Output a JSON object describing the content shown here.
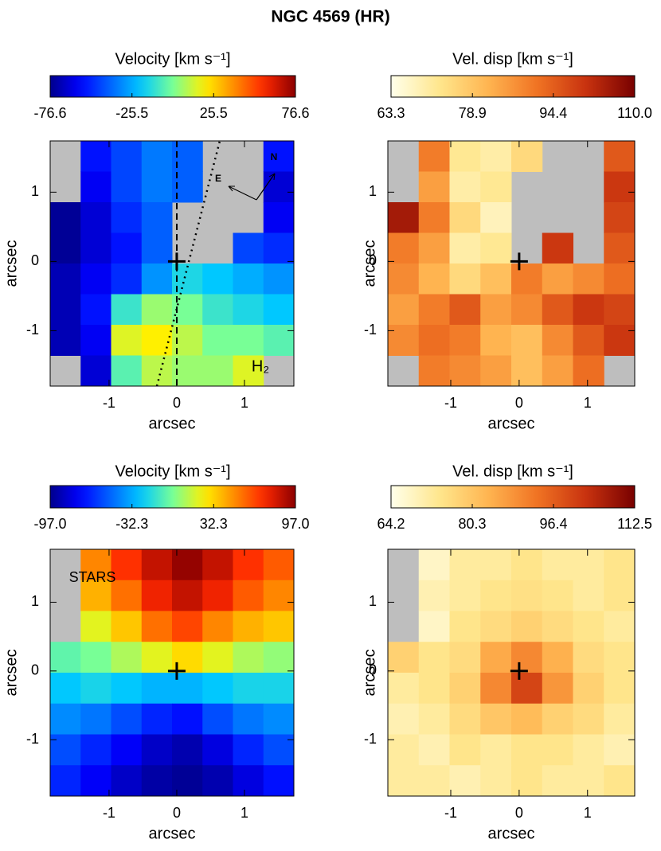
{
  "title": "NGC 4569 (HR)",
  "chart_data": [
    {
      "type": "heatmap",
      "colorbar_label": "Velocity [km s⁻¹]",
      "colormap": "jet",
      "missing_color": "#bebebe",
      "clim": [
        -76.6,
        76.6
      ],
      "cticks": [
        -76.6,
        -25.5,
        25.5,
        76.6
      ],
      "xlabel": "arcsec",
      "ylabel": "arcsec",
      "xlim": [
        -1.87,
        1.73
      ],
      "ylim": [
        -1.8,
        1.74
      ],
      "xticks": [
        -1,
        0,
        1
      ],
      "yticks": [
        -1,
        0,
        1
      ],
      "annotations": [
        "H₂",
        "N",
        "E"
      ],
      "values": [
        [
          null,
          -55,
          -45,
          -35,
          -40,
          null,
          null,
          -55
        ],
        [
          null,
          -60,
          -45,
          -35,
          -40,
          null,
          null,
          -65
        ],
        [
          -75,
          -65,
          -50,
          -40,
          null,
          null,
          null,
          -60
        ],
        [
          -75,
          -65,
          -55,
          -40,
          null,
          null,
          -45,
          -50
        ],
        [
          -70,
          -60,
          -50,
          -30,
          -15,
          -20,
          -25,
          -30
        ],
        [
          -70,
          -55,
          -10,
          5,
          0,
          -10,
          -15,
          -20
        ],
        [
          -70,
          -60,
          15,
          20,
          10,
          0,
          0,
          -5
        ],
        [
          null,
          -65,
          -5,
          10,
          5,
          5,
          15,
          null
        ]
      ]
    },
    {
      "type": "heatmap",
      "colorbar_label": "Vel. disp [km s⁻¹]",
      "colormap": "heat",
      "missing_color": "#bebebe",
      "clim": [
        63.3,
        110.0
      ],
      "cticks": [
        63.3,
        78.9,
        94.4,
        {
          "value": 110,
          "label": "110.0"
        }
      ],
      "xlabel": "arcsec",
      "ylabel": "arcsec",
      "xlim": [
        -1.92,
        1.69
      ],
      "ylim": [
        -1.8,
        1.74
      ],
      "xticks": [
        -1,
        0,
        1
      ],
      "yticks": [
        -1,
        0,
        1
      ],
      "annotations": [],
      "values": [
        [
          null,
          90,
          72,
          70,
          75,
          null,
          null,
          95
        ],
        [
          null,
          85,
          70,
          72,
          null,
          null,
          null,
          100
        ],
        [
          105,
          90,
          75,
          68,
          null,
          null,
          null,
          98
        ],
        [
          90,
          85,
          70,
          72,
          null,
          100,
          null,
          95
        ],
        [
          88,
          82,
          75,
          80,
          90,
          85,
          88,
          92
        ],
        [
          85,
          90,
          95,
          85,
          88,
          95,
          100,
          98
        ],
        [
          88,
          92,
          90,
          82,
          80,
          88,
          95,
          100
        ],
        [
          null,
          90,
          88,
          85,
          80,
          85,
          92,
          null
        ]
      ]
    },
    {
      "type": "heatmap",
      "colorbar_label": "Velocity [km s⁻¹]",
      "colormap": "jet",
      "missing_color": "#bebebe",
      "clim": [
        -97,
        97
      ],
      "cticks": [
        {
          "value": -97,
          "label": "-97.0"
        },
        -32.3,
        32.3,
        {
          "value": 97,
          "label": "97.0"
        }
      ],
      "xlabel": "arcsec",
      "ylabel": "arcsec",
      "xlim": [
        -1.87,
        1.73
      ],
      "ylim": [
        -1.82,
        1.77
      ],
      "xticks": [
        -1,
        0,
        1
      ],
      "yticks": [
        -1,
        0,
        1
      ],
      "annotations": [
        "STARS"
      ],
      "values": [
        [
          null,
          50,
          70,
          85,
          95,
          85,
          70,
          60
        ],
        [
          null,
          40,
          55,
          75,
          85,
          75,
          60,
          50
        ],
        [
          null,
          20,
          35,
          55,
          65,
          50,
          40,
          35
        ],
        [
          -5,
          0,
          10,
          20,
          30,
          20,
          10,
          5
        ],
        [
          -25,
          -20,
          -25,
          -30,
          -30,
          -25,
          -20,
          -20
        ],
        [
          -40,
          -45,
          -55,
          -65,
          -70,
          -55,
          -45,
          -40
        ],
        [
          -55,
          -65,
          -75,
          -85,
          -90,
          -80,
          -65,
          -55
        ],
        [
          -65,
          -75,
          -85,
          -92,
          -95,
          -90,
          -80,
          -70
        ]
      ]
    },
    {
      "type": "heatmap",
      "colorbar_label": "Vel. disp [km s⁻¹]",
      "colormap": "heat",
      "missing_color": "#bebebe",
      "clim": [
        64.2,
        112.5
      ],
      "cticks": [
        64.2,
        80.3,
        96.4,
        112.5
      ],
      "xlabel": "arcsec",
      "ylabel": "arcsec",
      "xlim": [
        -1.92,
        1.69
      ],
      "ylim": [
        -1.82,
        1.77
      ],
      "xticks": [
        -1,
        0,
        1
      ],
      "yticks": [
        -1,
        0,
        1
      ],
      "annotations": [],
      "values": [
        [
          null,
          68,
          72,
          72,
          74,
          72,
          72,
          74
        ],
        [
          null,
          70,
          72,
          74,
          75,
          74,
          72,
          74
        ],
        [
          null,
          68,
          74,
          76,
          78,
          76,
          74,
          72
        ],
        [
          78,
          74,
          76,
          85,
          90,
          84,
          76,
          74
        ],
        [
          72,
          74,
          78,
          90,
          100,
          88,
          78,
          74
        ],
        [
          70,
          72,
          76,
          80,
          82,
          78,
          76,
          72
        ],
        [
          72,
          70,
          74,
          72,
          74,
          74,
          72,
          70
        ],
        [
          72,
          72,
          70,
          72,
          74,
          72,
          72,
          74
        ]
      ]
    }
  ]
}
